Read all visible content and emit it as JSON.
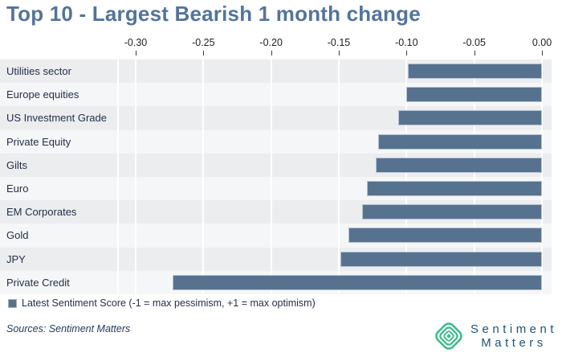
{
  "title": "Top 10 - Largest Bearish 1 month change",
  "chart_data": {
    "type": "bar",
    "orientation": "horizontal",
    "title": "Top 10 - Largest Bearish 1 month change",
    "series_name": "Latest Sentiment Score",
    "categories": [
      "Utilities sector",
      "Europe equities",
      "US Investment Grade",
      "Private Equity",
      "Gilts",
      "Euro",
      "EM Corporates",
      "Gold",
      "JPY",
      "Private Credit"
    ],
    "values": [
      -0.099,
      -0.1,
      -0.106,
      -0.121,
      -0.123,
      -0.129,
      -0.133,
      -0.143,
      -0.149,
      -0.273
    ],
    "xlim": [
      -0.3,
      0.0
    ],
    "xticks": [
      "-0.30",
      "-0.25",
      "-0.20",
      "-0.15",
      "-0.10",
      "-0.05",
      "0.00"
    ],
    "xtick_values": [
      -0.3,
      -0.25,
      -0.2,
      -0.15,
      -0.1,
      -0.05,
      0.0
    ],
    "axis_position": "top",
    "grid": true,
    "legend_position": "bottom-left",
    "bar_color": "#56728E"
  },
  "legend": {
    "label": "Latest Sentiment Score (-1 = max pessimism, +1 = max optimism)"
  },
  "footer": {
    "sources": "Sources: Sentiment Matters",
    "logo_line1": "Sentiment",
    "logo_line2": "Matters"
  },
  "colors": {
    "title": "#53749B",
    "bar": "#56728E",
    "bar_border": "#B6C2D3",
    "row_odd": "#ECEDEF",
    "row_even": "#F5F6F7",
    "label_text": "#232F49",
    "logo_green": "#3FBC8E",
    "logo_text": "#1D5379"
  }
}
